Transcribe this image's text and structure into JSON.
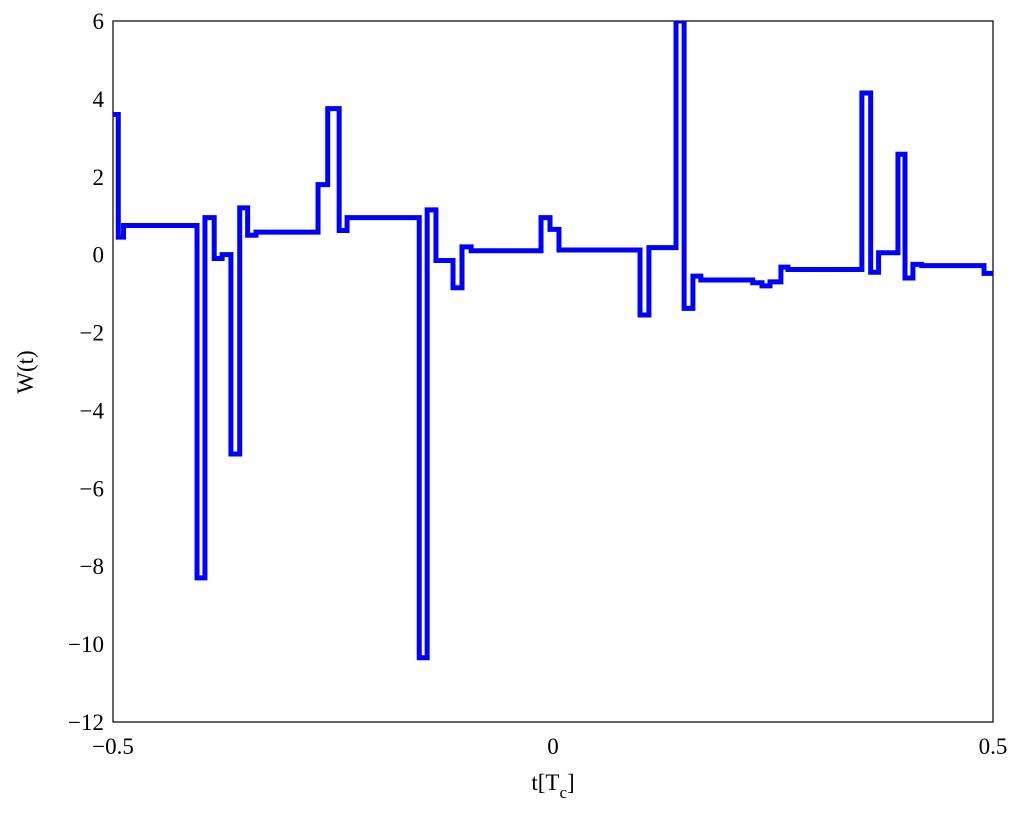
{
  "chart_data": {
    "type": "step",
    "xlabel_parts": [
      "t[T",
      "c",
      "]"
    ],
    "ylabel": "W(t)",
    "xlim": [
      -0.5,
      0.5
    ],
    "ylim": [
      -12,
      6
    ],
    "xticks": [
      {
        "value": -0.5,
        "label": "−0.5"
      },
      0,
      0.5
    ],
    "yticks": [
      {
        "value": -12,
        "label": "−12"
      },
      {
        "value": -10,
        "label": "−10"
      },
      {
        "value": -8,
        "label": "−8"
      },
      {
        "value": -6,
        "label": "−6"
      },
      {
        "value": -4,
        "label": "−4"
      },
      {
        "value": -2,
        "label": "−2"
      },
      0,
      2,
      4,
      6
    ],
    "grid": true,
    "series": [
      {
        "color": "#0000ff",
        "x": [
          -0.5,
          -0.494,
          -0.488,
          -0.4045,
          -0.3955,
          -0.385,
          -0.376,
          -0.366,
          -0.356,
          -0.347,
          -0.3375,
          -0.267,
          -0.256,
          -0.243,
          -0.234,
          -0.152,
          -0.143,
          -0.133,
          -0.1136,
          -0.1034,
          -0.093,
          -0.0136,
          -0.0034,
          0.0068,
          0.0989,
          0.109,
          0.1398,
          0.149,
          0.159,
          0.168,
          0.227,
          0.2375,
          0.2466,
          0.259,
          0.267,
          0.351,
          0.361,
          0.37,
          0.392,
          0.4,
          0.409,
          0.419,
          0.4898,
          0.5
        ],
        "values": [
          3.6,
          0.45,
          0.75,
          -8.3,
          0.95,
          -0.1,
          0.0,
          -5.12,
          1.2,
          0.5,
          0.58,
          1.8,
          3.75,
          0.62,
          0.95,
          -10.35,
          1.15,
          -0.15,
          -0.85,
          0.2,
          0.1,
          0.95,
          0.65,
          0.12,
          -1.55,
          0.18,
          6,
          -1.38,
          -0.55,
          -0.65,
          -0.72,
          -0.8,
          -0.7,
          -0.32,
          -0.38,
          4.15,
          -0.45,
          0.05,
          2.58,
          -0.6,
          -0.25,
          -0.28,
          -0.48,
          -0.48
        ]
      }
    ]
  }
}
